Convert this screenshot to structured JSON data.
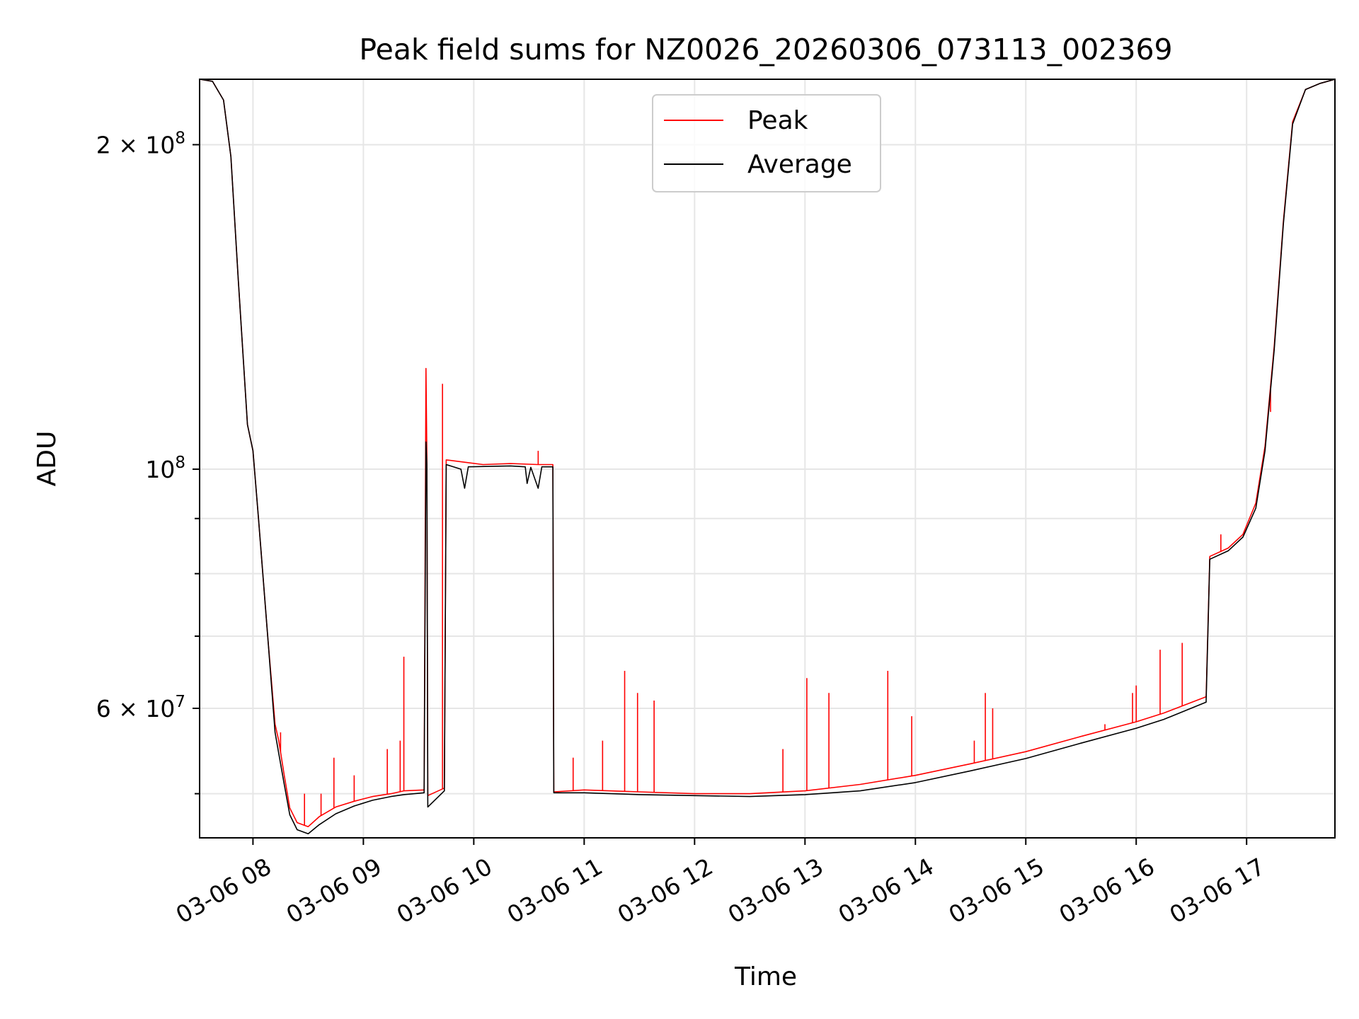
{
  "chart_data": {
    "type": "line",
    "title": "Peak field sums for NZ0026_20260306_073113_002369",
    "xlabel": "Time",
    "ylabel": "ADU",
    "yscale": "log",
    "xlim": [
      "2026-03-06T07:31",
      "2026-03-06T17:48"
    ],
    "ylim": [
      45500000,
      230000000
    ],
    "grid": true,
    "legend": "upper-center",
    "x_ticks": [
      "03-06 08",
      "03-06 09",
      "03-06 10",
      "03-06 11",
      "03-06 12",
      "03-06 13",
      "03-06 14",
      "03-06 15",
      "03-06 16",
      "03-06 17"
    ],
    "x_tick_times": [
      "2026-03-06T08:00",
      "2026-03-06T09:00",
      "2026-03-06T10:00",
      "2026-03-06T11:00",
      "2026-03-06T12:00",
      "2026-03-06T13:00",
      "2026-03-06T14:00",
      "2026-03-06T15:00",
      "2026-03-06T16:00",
      "2026-03-06T17:00"
    ],
    "y_major_ticks": [
      {
        "value": 60000000,
        "label_base": "6 × 10",
        "label_exp": "7"
      },
      {
        "value": 100000000,
        "label_base": "10",
        "label_exp": "8"
      },
      {
        "value": 200000000,
        "label_base": "2 × 10",
        "label_exp": "8"
      }
    ],
    "y_minor_ticks": [
      50000000,
      70000000,
      80000000,
      90000000
    ],
    "series": [
      {
        "name": "Peak",
        "color": "#ff0000",
        "points": [
          [
            "2026-03-06T07:31",
            230000000
          ],
          [
            "2026-03-06T07:38",
            229000000
          ],
          [
            "2026-03-06T07:44",
            220000000
          ],
          [
            "2026-03-06T07:48",
            195000000
          ],
          [
            "2026-03-06T07:52",
            150000000
          ],
          [
            "2026-03-06T07:57",
            110000000
          ],
          [
            "2026-03-06T08:00",
            104000000
          ],
          [
            "2026-03-06T08:03",
            90000000
          ],
          [
            "2026-03-06T08:08",
            70000000
          ],
          [
            "2026-03-06T08:12",
            58000000
          ],
          [
            "2026-03-06T08:14",
            56000000
          ],
          [
            "2026-03-06T08:17",
            52000000
          ],
          [
            "2026-03-06T08:20",
            48500000
          ],
          [
            "2026-03-06T08:24",
            47000000
          ],
          [
            "2026-03-06T08:30",
            46600000
          ],
          [
            "2026-03-06T08:36",
            47600000
          ],
          [
            "2026-03-06T08:45",
            48600000
          ],
          [
            "2026-03-06T08:55",
            49200000
          ],
          [
            "2026-03-06T09:05",
            49700000
          ],
          [
            "2026-03-06T09:15",
            50000000
          ],
          [
            "2026-03-06T09:22",
            50300000
          ],
          [
            "2026-03-06T09:33",
            50400000
          ],
          [
            "2026-03-06T09:34",
            124000000
          ],
          [
            "2026-03-06T09:34.5",
            103000000
          ],
          [
            "2026-03-06T09:35",
            49800000
          ],
          [
            "2026-03-06T09:44",
            50600000
          ],
          [
            "2026-03-06T09:45",
            102000000
          ],
          [
            "2026-03-06T09:55",
            101500000
          ],
          [
            "2026-03-06T10:05",
            101000000
          ],
          [
            "2026-03-06T10:20",
            101200000
          ],
          [
            "2026-03-06T10:35",
            101000000
          ],
          [
            "2026-03-06T10:43",
            101000000
          ],
          [
            "2026-03-06T10:43.5",
            50200000
          ],
          [
            "2026-03-06T11:00",
            50400000
          ],
          [
            "2026-03-06T11:30",
            50200000
          ],
          [
            "2026-03-06T12:00",
            50000000
          ],
          [
            "2026-03-06T12:30",
            50000000
          ],
          [
            "2026-03-06T13:00",
            50300000
          ],
          [
            "2026-03-06T13:30",
            51000000
          ],
          [
            "2026-03-06T14:00",
            52000000
          ],
          [
            "2026-03-06T14:30",
            53300000
          ],
          [
            "2026-03-06T15:00",
            54700000
          ],
          [
            "2026-03-06T15:30",
            56500000
          ],
          [
            "2026-03-06T16:00",
            58300000
          ],
          [
            "2026-03-06T16:15",
            59400000
          ],
          [
            "2026-03-06T16:38",
            61500000
          ],
          [
            "2026-03-06T16:40",
            83000000
          ],
          [
            "2026-03-06T16:50",
            84500000
          ],
          [
            "2026-03-06T16:58",
            87000000
          ],
          [
            "2026-03-06T17:05",
            93000000
          ],
          [
            "2026-03-06T17:10",
            105000000
          ],
          [
            "2026-03-06T17:15",
            130000000
          ],
          [
            "2026-03-06T17:20",
            170000000
          ],
          [
            "2026-03-06T17:25",
            210000000
          ],
          [
            "2026-03-06T17:32",
            225000000
          ],
          [
            "2026-03-06T17:40",
            228000000
          ],
          [
            "2026-03-06T17:48",
            230000000
          ]
        ],
        "spikes": [
          [
            "2026-03-06T08:15",
            57000000
          ],
          [
            "2026-03-06T08:28",
            50000000
          ],
          [
            "2026-03-06T08:37",
            50000000
          ],
          [
            "2026-03-06T08:44",
            54000000
          ],
          [
            "2026-03-06T08:55",
            52000000
          ],
          [
            "2026-03-06T09:13",
            55000000
          ],
          [
            "2026-03-06T09:20",
            56000000
          ],
          [
            "2026-03-06T09:22",
            67000000
          ],
          [
            "2026-03-06T09:43",
            120000000
          ],
          [
            "2026-03-06T10:35",
            104000000
          ],
          [
            "2026-03-06T10:54",
            54000000
          ],
          [
            "2026-03-06T11:10",
            56000000
          ],
          [
            "2026-03-06T11:22",
            65000000
          ],
          [
            "2026-03-06T11:29",
            62000000
          ],
          [
            "2026-03-06T11:38",
            61000000
          ],
          [
            "2026-03-06T12:48",
            55000000
          ],
          [
            "2026-03-06T13:01",
            64000000
          ],
          [
            "2026-03-06T13:13",
            62000000
          ],
          [
            "2026-03-06T13:45",
            65000000
          ],
          [
            "2026-03-06T13:58",
            59000000
          ],
          [
            "2026-03-06T14:32",
            56000000
          ],
          [
            "2026-03-06T14:38",
            62000000
          ],
          [
            "2026-03-06T14:42",
            60000000
          ],
          [
            "2026-03-06T15:43",
            58000000
          ],
          [
            "2026-03-06T15:58",
            62000000
          ],
          [
            "2026-03-06T16:00",
            63000000
          ],
          [
            "2026-03-06T16:13",
            68000000
          ],
          [
            "2026-03-06T16:25",
            69000000
          ],
          [
            "2026-03-06T16:46",
            87000000
          ],
          [
            "2026-03-06T17:06",
            95000000
          ],
          [
            "2026-03-06T17:13",
            113000000
          ]
        ]
      },
      {
        "name": "Average",
        "color": "#000000",
        "points": [
          [
            "2026-03-06T07:31",
            230000000
          ],
          [
            "2026-03-06T07:38",
            229000000
          ],
          [
            "2026-03-06T07:44",
            220000000
          ],
          [
            "2026-03-06T07:48",
            195000000
          ],
          [
            "2026-03-06T07:52",
            150000000
          ],
          [
            "2026-03-06T07:57",
            110000000
          ],
          [
            "2026-03-06T08:00",
            104000000
          ],
          [
            "2026-03-06T08:03",
            90000000
          ],
          [
            "2026-03-06T08:08",
            70000000
          ],
          [
            "2026-03-06T08:12",
            57000000
          ],
          [
            "2026-03-06T08:14",
            54500000
          ],
          [
            "2026-03-06T08:17",
            51000000
          ],
          [
            "2026-03-06T08:20",
            47800000
          ],
          [
            "2026-03-06T08:24",
            46300000
          ],
          [
            "2026-03-06T08:30",
            45900000
          ],
          [
            "2026-03-06T08:36",
            46800000
          ],
          [
            "2026-03-06T08:45",
            47900000
          ],
          [
            "2026-03-06T08:55",
            48700000
          ],
          [
            "2026-03-06T09:05",
            49300000
          ],
          [
            "2026-03-06T09:15",
            49700000
          ],
          [
            "2026-03-06T09:22",
            49900000
          ],
          [
            "2026-03-06T09:33",
            50100000
          ],
          [
            "2026-03-06T09:34",
            106000000
          ],
          [
            "2026-03-06T09:34.5",
            101000000
          ],
          [
            "2026-03-06T09:35",
            48600000
          ],
          [
            "2026-03-06T09:44",
            50300000
          ],
          [
            "2026-03-06T09:45",
            101000000
          ],
          [
            "2026-03-06T09:53",
            100000000
          ],
          [
            "2026-03-06T09:55",
            96000000
          ],
          [
            "2026-03-06T09:57",
            100500000
          ],
          [
            "2026-03-06T10:20",
            100700000
          ],
          [
            "2026-03-06T10:28",
            100500000
          ],
          [
            "2026-03-06T10:29",
            97000000
          ],
          [
            "2026-03-06T10:31",
            100400000
          ],
          [
            "2026-03-06T10:35",
            96000000
          ],
          [
            "2026-03-06T10:37",
            100500000
          ],
          [
            "2026-03-06T10:43",
            100500000
          ],
          [
            "2026-03-06T10:43.5",
            50100000
          ],
          [
            "2026-03-06T11:00",
            50100000
          ],
          [
            "2026-03-06T11:30",
            49900000
          ],
          [
            "2026-03-06T12:00",
            49800000
          ],
          [
            "2026-03-06T12:30",
            49700000
          ],
          [
            "2026-03-06T13:00",
            49900000
          ],
          [
            "2026-03-06T13:30",
            50300000
          ],
          [
            "2026-03-06T14:00",
            51200000
          ],
          [
            "2026-03-06T14:30",
            52500000
          ],
          [
            "2026-03-06T15:00",
            53900000
          ],
          [
            "2026-03-06T15:30",
            55700000
          ],
          [
            "2026-03-06T16:00",
            57500000
          ],
          [
            "2026-03-06T16:15",
            58600000
          ],
          [
            "2026-03-06T16:38",
            60800000
          ],
          [
            "2026-03-06T16:40",
            82500000
          ],
          [
            "2026-03-06T16:50",
            84000000
          ],
          [
            "2026-03-06T16:58",
            86500000
          ],
          [
            "2026-03-06T17:05",
            92000000
          ],
          [
            "2026-03-06T17:10",
            104000000
          ],
          [
            "2026-03-06T17:15",
            129000000
          ],
          [
            "2026-03-06T17:20",
            169000000
          ],
          [
            "2026-03-06T17:25",
            209000000
          ],
          [
            "2026-03-06T17:32",
            225000000
          ],
          [
            "2026-03-06T17:40",
            228000000
          ],
          [
            "2026-03-06T17:48",
            230000000
          ]
        ]
      }
    ]
  }
}
